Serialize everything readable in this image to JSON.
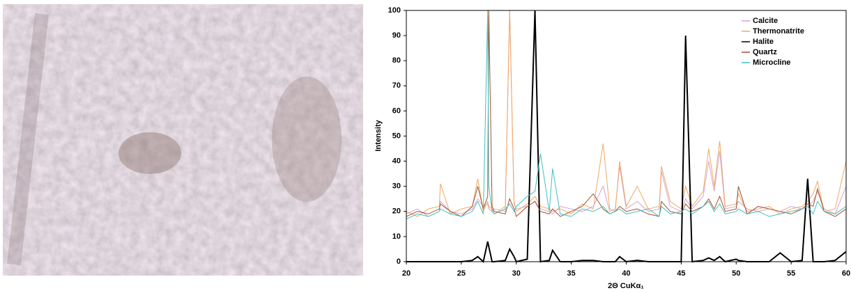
{
  "chart_data": {
    "type": "line",
    "xlabel": "2Θ CuKα₁",
    "ylabel": "Intensity",
    "xlim": [
      20,
      60
    ],
    "xticks": [
      20,
      25,
      30,
      35,
      40,
      45,
      50,
      55,
      60
    ],
    "ylim": [
      0,
      100
    ],
    "yticks": [
      0,
      10,
      20,
      30,
      40,
      50,
      60,
      70,
      80,
      90,
      100
    ],
    "grid": false,
    "legend": "upper right",
    "x": [
      20,
      21,
      22,
      23,
      23.1,
      24,
      25,
      26,
      26.5,
      27,
      27.4,
      27.5,
      27.8,
      28,
      29,
      29.4,
      29.8,
      30,
      31,
      31.7,
      32.2,
      33,
      33.3,
      34,
      35,
      36,
      37,
      37.9,
      38.5,
      39,
      39.4,
      40,
      41,
      42,
      43,
      43.2,
      44,
      45,
      45.4,
      46,
      47,
      47.5,
      48,
      48.5,
      49,
      50,
      50.2,
      51,
      52,
      53,
      54,
      55,
      56,
      56.5,
      57,
      57.4,
      58,
      59,
      60
    ],
    "series": [
      {
        "name": "Calcite",
        "color": "#d9a0d0",
        "values": [
          19,
          21,
          18,
          20,
          24,
          20,
          19,
          21,
          25,
          22,
          23,
          21,
          20,
          21,
          20,
          100,
          23,
          21,
          22,
          24,
          21,
          20,
          19,
          22,
          21,
          20,
          22,
          30,
          20,
          21,
          38,
          21,
          24,
          20,
          21,
          36,
          22,
          20,
          25,
          21,
          26,
          40,
          28,
          44,
          21,
          22,
          24,
          21,
          20,
          21,
          20,
          22,
          21,
          22,
          24,
          28,
          21,
          19,
          30
        ]
      },
      {
        "name": "Thermonatrite",
        "color": "#f0a860",
        "values": [
          20,
          18,
          21,
          22,
          31,
          19,
          21,
          22,
          33,
          20,
          24,
          22,
          21,
          19,
          22,
          100,
          24,
          20,
          23,
          26,
          22,
          21,
          20,
          21,
          19,
          23,
          21,
          47,
          21,
          20,
          40,
          22,
          30,
          21,
          22,
          38,
          24,
          21,
          30,
          22,
          28,
          45,
          30,
          48,
          22,
          23,
          27,
          20,
          21,
          22,
          19,
          21,
          22,
          24,
          27,
          32,
          20,
          21,
          40
        ]
      },
      {
        "name": "Halite",
        "color": "#000000",
        "values": [
          0,
          0,
          0,
          0,
          0,
          0,
          0,
          0.5,
          2,
          0,
          8,
          6,
          0,
          0,
          0.5,
          5,
          2,
          0,
          1,
          100,
          0,
          0.5,
          4.5,
          0,
          0,
          0.5,
          0.5,
          0,
          0,
          0,
          2,
          0,
          0.5,
          0,
          0,
          0,
          0,
          0,
          90,
          0,
          0.5,
          1.5,
          0.5,
          2,
          0,
          1,
          0.5,
          0,
          0,
          0,
          3.5,
          0,
          0.5,
          33,
          0,
          0,
          0,
          0.5,
          4
        ]
      },
      {
        "name": "Quartz",
        "color": "#a0522d",
        "values": [
          18,
          20,
          19,
          21,
          23,
          20,
          18,
          22,
          30,
          21,
          26,
          100,
          22,
          20,
          19,
          25,
          21,
          18,
          22,
          24,
          20,
          19,
          21,
          18,
          20,
          22,
          27,
          21,
          19,
          20,
          22,
          20,
          21,
          19,
          18,
          24,
          20,
          19,
          23,
          20,
          22,
          25,
          21,
          26,
          20,
          21,
          30,
          19,
          22,
          21,
          20,
          19,
          21,
          23,
          22,
          29,
          20,
          18,
          21
        ]
      },
      {
        "name": "Microcline",
        "color": "#40c0c0",
        "values": [
          17,
          19,
          18,
          20,
          21,
          19,
          18,
          20,
          24,
          19,
          100,
          30,
          20,
          19,
          21,
          23,
          20,
          22,
          26,
          28,
          43,
          20,
          37,
          19,
          18,
          21,
          20,
          22,
          19,
          20,
          21,
          19,
          20,
          21,
          18,
          22,
          19,
          20,
          21,
          19,
          22,
          24,
          20,
          23,
          19,
          20,
          21,
          19,
          20,
          18,
          19,
          20,
          21,
          22,
          19,
          24,
          20,
          19,
          22
        ]
      }
    ]
  }
}
